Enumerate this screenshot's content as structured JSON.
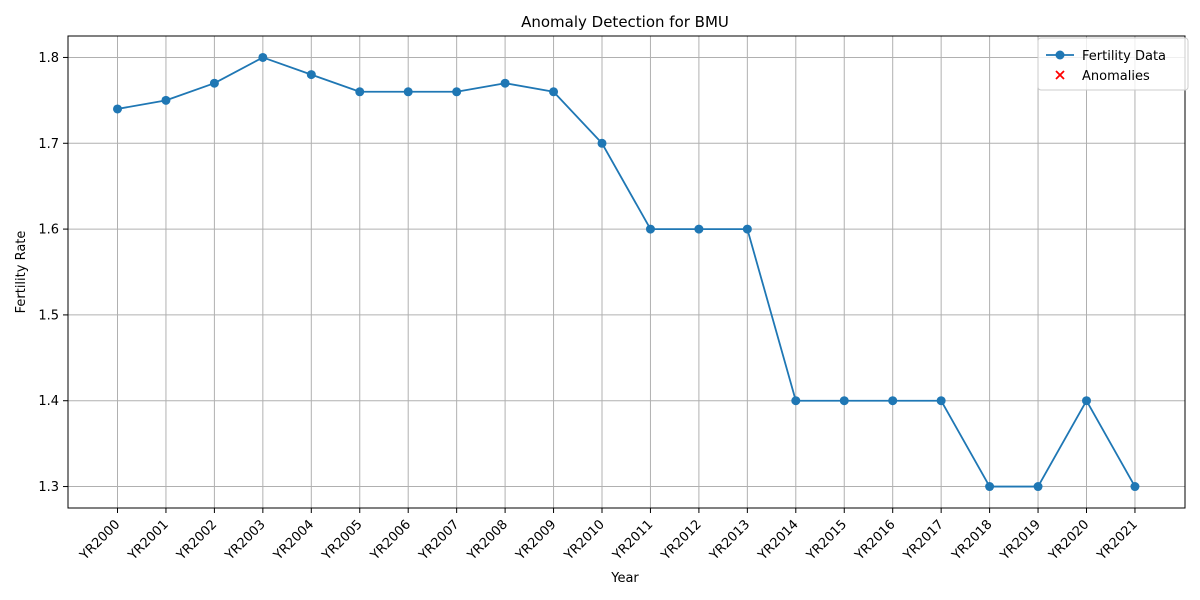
{
  "chart_data": {
    "type": "line",
    "title": "Anomaly Detection for BMU",
    "xlabel": "Year",
    "ylabel": "Fertility Rate",
    "categories": [
      "YR2000",
      "YR2001",
      "YR2002",
      "YR2003",
      "YR2004",
      "YR2005",
      "YR2006",
      "YR2007",
      "YR2008",
      "YR2009",
      "YR2010",
      "YR2011",
      "YR2012",
      "YR2013",
      "YR2014",
      "YR2015",
      "YR2016",
      "YR2017",
      "YR2018",
      "YR2019",
      "YR2020",
      "YR2021"
    ],
    "series": [
      {
        "name": "Fertility Data",
        "color": "#1f77b4",
        "values": [
          1.74,
          1.75,
          1.77,
          1.8,
          1.78,
          1.76,
          1.76,
          1.76,
          1.77,
          1.76,
          1.7,
          1.6,
          1.6,
          1.6,
          1.4,
          1.4,
          1.4,
          1.4,
          1.3,
          1.3,
          1.4,
          1.3
        ]
      }
    ],
    "anomalies": {
      "name": "Anomalies",
      "color": "#ff0000",
      "points": []
    },
    "ylim": [
      1.275,
      1.825
    ],
    "yticks": [
      1.3,
      1.4,
      1.5,
      1.6,
      1.7,
      1.8
    ],
    "grid": true,
    "legend": "top-right"
  }
}
